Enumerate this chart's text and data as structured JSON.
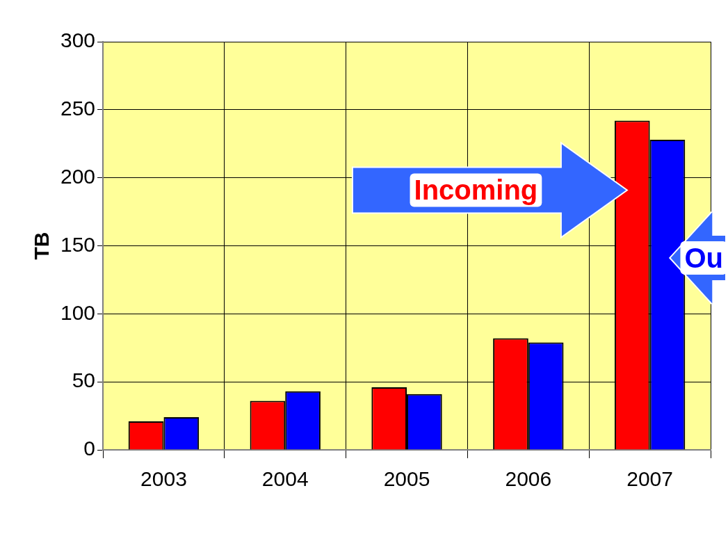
{
  "chart_data": {
    "type": "bar",
    "ylabel": "TB",
    "categories": [
      "2003",
      "2004",
      "2005",
      "2006",
      "2007"
    ],
    "series": [
      {
        "name": "Incoming",
        "color": "#ff0000",
        "values": [
          21,
          36,
          46,
          82,
          242
        ]
      },
      {
        "name": "Ou",
        "color": "#0000ff",
        "values": [
          24,
          43,
          41,
          79,
          228
        ]
      }
    ],
    "ylim": [
      0,
      300
    ],
    "yticks": [
      0,
      50,
      100,
      150,
      200,
      250,
      300
    ],
    "grid": true,
    "legend": false
  }
}
